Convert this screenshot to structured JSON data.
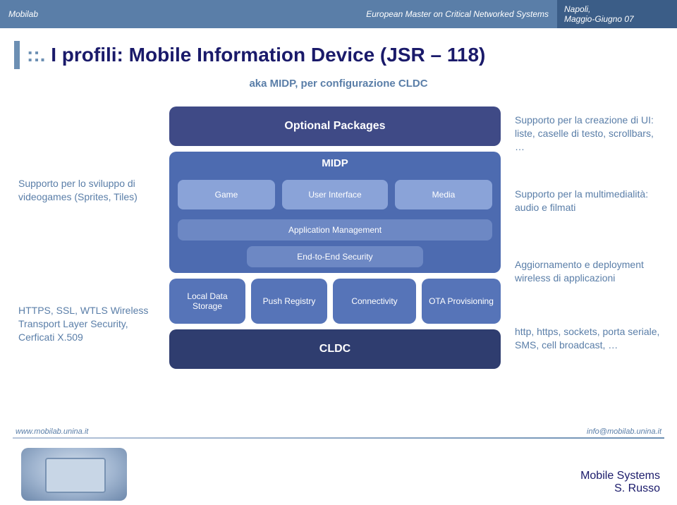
{
  "header": {
    "left": "Mobilab",
    "mid": "European Master on Critical Networked Systems",
    "right_line1": "Napoli,",
    "right_line2": "Maggio-Giugno 07"
  },
  "title": {
    "prefix": "::.",
    "text": "I profili: Mobile Information Device (JSR – 118)"
  },
  "subtitle": "aka MIDP, per configurazione CLDC",
  "left_notes": {
    "n1": "Supporto per lo sviluppo di videogames (Sprites, Tiles)",
    "n2": "HTTPS, SSL, WTLS Wireless Transport Layer Security, Cerficati X.509"
  },
  "right_notes": {
    "n1": "Supporto per la creazione di UI: liste, caselle di testo, scrollbars, …",
    "n2": "Supporto per la multimedialità: audio e filmati",
    "n3": "Aggiornamento e deployment wireless di applicazioni",
    "n4": "http, https, sockets, porta seriale, SMS, cell broadcast, …"
  },
  "diagram": {
    "optional": "Optional Packages",
    "midp": "MIDP",
    "game": "Game",
    "ui": "User Interface",
    "media": "Media",
    "appmgmt": "Application Management",
    "e2e": "End-to-End Security",
    "lds": "Local Data Storage",
    "push": "Push Registry",
    "conn": "Connectivity",
    "ota": "OTA Provisioning",
    "cldc": "CLDC",
    "colors": {
      "optional": "#3f4a86",
      "midp_outer": "#4d6bb0",
      "midp_inner_light": "#8aa3d8",
      "midp_inner_mid": "#6d88c4",
      "row3": "#5674b8",
      "cldc": "#2f3d6f"
    }
  },
  "footer": {
    "left": "www.mobilab.unina.it",
    "right": "info@mobilab.unina.it",
    "brand_line1": "Mobile Systems",
    "brand_line2": "S. Russo"
  }
}
